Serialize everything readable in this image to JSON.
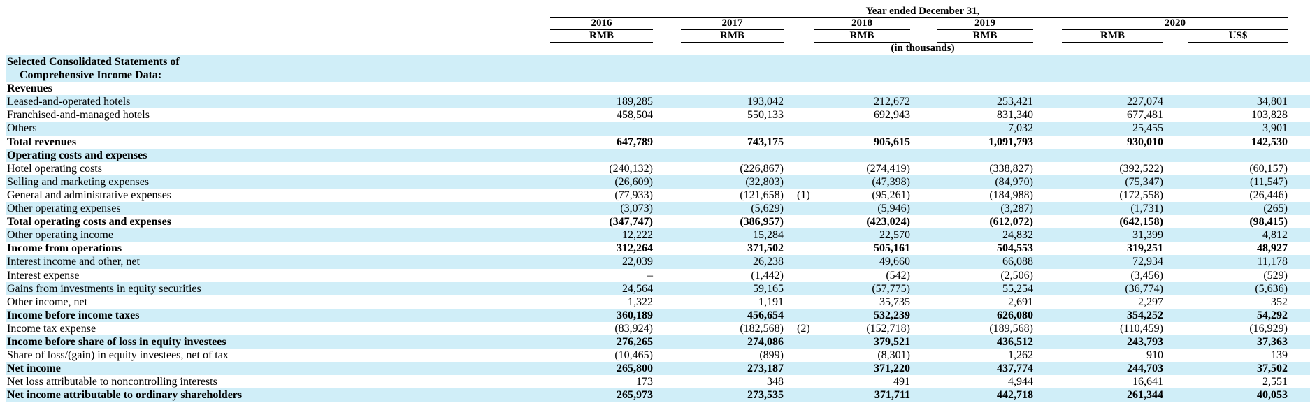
{
  "header": {
    "period": "Year ended December 31,",
    "years": [
      "2016",
      "2017",
      "2018",
      "2019",
      "2020"
    ],
    "currencies": [
      "RMB",
      "RMB",
      "RMB",
      "RMB",
      "RMB",
      "US$"
    ],
    "unit_note": "(in thousands)"
  },
  "rows": [
    {
      "label": "Selected Consolidated Statements of",
      "bold": true,
      "shade": true,
      "values": [
        "",
        "",
        "",
        "",
        "",
        ""
      ]
    },
    {
      "label": "   Comprehensive Income Data:",
      "bold": true,
      "shade": true,
      "values": [
        "",
        "",
        "",
        "",
        "",
        ""
      ]
    },
    {
      "label": "Revenues",
      "bold": true,
      "shade": false,
      "values": [
        "",
        "",
        "",
        "",
        "",
        ""
      ]
    },
    {
      "label": "Leased-and-operated hotels",
      "bold": false,
      "shade": true,
      "values": [
        "189,285",
        "193,042",
        "212,672",
        "253,421",
        "227,074",
        "34,801"
      ]
    },
    {
      "label": "Franchised-and-managed hotels",
      "bold": false,
      "shade": false,
      "values": [
        "458,504",
        "550,133",
        "692,943",
        "831,340",
        "677,481",
        "103,828"
      ]
    },
    {
      "label": "Others",
      "bold": false,
      "shade": true,
      "values": [
        "",
        "",
        "",
        "7,032",
        "25,455",
        "3,901"
      ]
    },
    {
      "label": "Total revenues",
      "bold": true,
      "shade": false,
      "values": [
        "647,789",
        "743,175",
        "905,615",
        "1,091,793",
        "930,010",
        "142,530"
      ]
    },
    {
      "label": "Operating costs and expenses",
      "bold": true,
      "shade": true,
      "values": [
        "",
        "",
        "",
        "",
        "",
        ""
      ]
    },
    {
      "label": "Hotel operating costs",
      "bold": false,
      "shade": false,
      "values": [
        "(240,132)",
        "(226,867)",
        "(274,419)",
        "(338,827)",
        "(392,522)",
        "(60,157)"
      ]
    },
    {
      "label": "Selling and marketing expenses",
      "bold": false,
      "shade": true,
      "values": [
        "(26,609)",
        "(32,803)",
        "(47,398)",
        "(84,970)",
        "(75,347)",
        "(11,547)"
      ]
    },
    {
      "label": "General and administrative expenses",
      "bold": false,
      "shade": false,
      "values": [
        "(77,933)",
        "(121,658)",
        "(95,261)",
        "(184,988)",
        "(172,558)",
        "(26,446)"
      ],
      "note": "(1)"
    },
    {
      "label": "Other operating expenses",
      "bold": false,
      "shade": true,
      "values": [
        "(3,073)",
        "(5,629)",
        "(5,946)",
        "(3,287)",
        "(1,731)",
        "(265)"
      ]
    },
    {
      "label": "Total operating costs and expenses",
      "bold": true,
      "shade": false,
      "values": [
        "(347,747)",
        "(386,957)",
        "(423,024)",
        "(612,072)",
        "(642,158)",
        "(98,415)"
      ]
    },
    {
      "label": "Other operating income",
      "bold": false,
      "shade": true,
      "values": [
        "12,222",
        "15,284",
        "22,570",
        "24,832",
        "31,399",
        "4,812"
      ]
    },
    {
      "label": "Income from operations",
      "bold": true,
      "shade": false,
      "values": [
        "312,264",
        "371,502",
        "505,161",
        "504,553",
        "319,251",
        "48,927"
      ]
    },
    {
      "label": "Interest income and other, net",
      "bold": false,
      "shade": true,
      "values": [
        "22,039",
        "26,238",
        "49,660",
        "66,088",
        "72,934",
        "11,178"
      ]
    },
    {
      "label": "Interest expense",
      "bold": false,
      "shade": false,
      "values": [
        "–",
        "(1,442)",
        "(542)",
        "(2,506)",
        "(3,456)",
        "(529)"
      ]
    },
    {
      "label": "Gains from investments in equity securities",
      "bold": false,
      "shade": true,
      "values": [
        "24,564",
        "59,165",
        "(57,775)",
        "55,254",
        "(36,774)",
        "(5,636)"
      ]
    },
    {
      "label": "Other income, net",
      "bold": false,
      "shade": false,
      "values": [
        "1,322",
        "1,191",
        "35,735",
        "2,691",
        "2,297",
        "352"
      ]
    },
    {
      "label": "Income before income taxes",
      "bold": true,
      "shade": true,
      "values": [
        "360,189",
        "456,654",
        "532,239",
        "626,080",
        "354,252",
        "54,292"
      ]
    },
    {
      "label": "Income tax expense",
      "bold": false,
      "shade": false,
      "values": [
        "(83,924)",
        "(182,568)",
        "(152,718)",
        "(189,568)",
        "(110,459)",
        "(16,929)"
      ],
      "note": "(2)"
    },
    {
      "label": "Income before share of loss in equity investees",
      "bold": true,
      "shade": true,
      "values": [
        "276,265",
        "274,086",
        "379,521",
        "436,512",
        "243,793",
        "37,363"
      ]
    },
    {
      "label": "Share of loss/(gain) in equity investees, net of tax",
      "bold": false,
      "shade": false,
      "values": [
        "(10,465)",
        "(899)",
        "(8,301)",
        "1,262",
        "910",
        "139"
      ]
    },
    {
      "label": "Net income",
      "bold": true,
      "shade": true,
      "values": [
        "265,800",
        "273,187",
        "371,220",
        "437,774",
        "244,703",
        "37,502"
      ]
    },
    {
      "label": "Net loss attributable to noncontrolling interests",
      "bold": false,
      "shade": false,
      "values": [
        "173",
        "348",
        "491",
        "4,944",
        "16,641",
        "2,551"
      ]
    },
    {
      "label": "Net income attributable to ordinary shareholders",
      "bold": true,
      "shade": true,
      "values": [
        "265,973",
        "273,535",
        "371,711",
        "442,718",
        "261,344",
        "40,053"
      ]
    }
  ]
}
